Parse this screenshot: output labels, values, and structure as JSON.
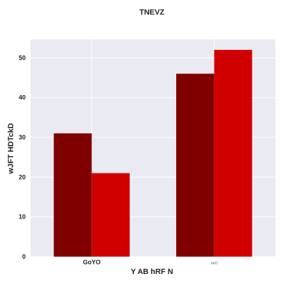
{
  "chart_data": {
    "type": "bar",
    "title": "TNEVZ",
    "xlabel": "Y AB hRF N",
    "ylabel": "wJFT HDTckD",
    "categories": [
      "GoYO",
      "mrO"
    ],
    "series": [
      {
        "values": [
          31,
          46
        ],
        "color": "#800000"
      },
      {
        "values": [
          21,
          52
        ],
        "color": "#d10000"
      }
    ],
    "ylim": [
      0,
      54.6
    ],
    "yticks": [
      0,
      10,
      20,
      30,
      40,
      50
    ],
    "grid": true,
    "legend": "none",
    "background_color": "#eaeaf2",
    "grid_color": "#ffffff"
  }
}
